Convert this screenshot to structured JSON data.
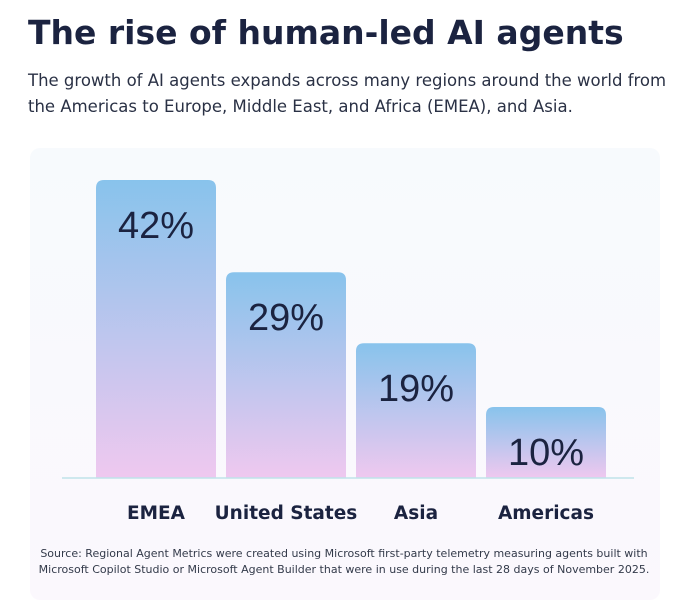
{
  "chart_data": {
    "type": "bar",
    "title": "The rise of human-led AI agents",
    "subtitle": [
      "The growth of AI agents expands across many regions around the world from",
      "the Americas to Europe, Middle East, and Africa (EMEA), and Asia."
    ],
    "categories": [
      "EMEA",
      "United States",
      "Asia",
      "Americas"
    ],
    "values": [
      42,
      29,
      19,
      10
    ],
    "value_labels": [
      "42%",
      "29%",
      "19%",
      "10%"
    ],
    "color": [
      "#88c3ec",
      "#efc8ef"
    ],
    "source": [
      "Source: Regional Agent Metrics were created using Microsoft first-party telemetry measuring agents built with",
      "Microsoft Copilot Studio or Microsoft Agent Builder that were in use during the last 28 days of November 2025."
    ]
  }
}
